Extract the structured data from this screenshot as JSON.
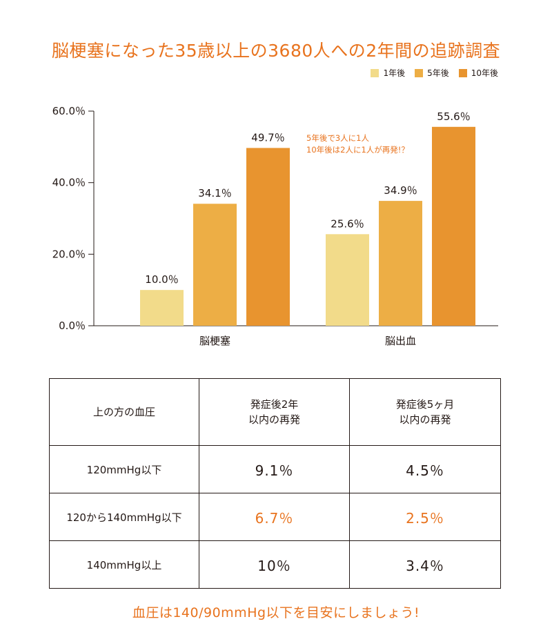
{
  "title": "脳梗塞になった35歳以上の3680人への2年間の追跡調査",
  "colors": {
    "s1": "#f2db8a",
    "s2": "#edae45",
    "s3": "#e8942f",
    "accent": "#e8731e"
  },
  "chart_data": {
    "type": "bar",
    "categories": [
      "脳梗塞",
      "脳出血"
    ],
    "series": [
      {
        "name": "1年後",
        "values": [
          10.0,
          25.6
        ],
        "labels": [
          "10.0％",
          "25.6％"
        ]
      },
      {
        "name": "5年後",
        "values": [
          34.1,
          34.9
        ],
        "labels": [
          "34.1％",
          "34.9％"
        ]
      },
      {
        "name": "10年後",
        "values": [
          49.7,
          55.6
        ],
        "labels": [
          "49.7％",
          "55.6％"
        ]
      }
    ],
    "yticks": [
      0,
      20,
      40,
      60
    ],
    "ytick_labels": [
      "0.0％",
      "20.0％",
      "40.0％",
      "60.0％"
    ],
    "ylim": [
      0,
      60
    ],
    "legend_position": "top-right",
    "annotation": [
      "5年後で3人に1人",
      "10年後は2人に1人が再発!？"
    ]
  },
  "table": {
    "headers": [
      "上の方の血圧",
      "発症後2年\n以内の再発",
      "発症後5ヶ月\n以内の再発"
    ],
    "rows": [
      {
        "label": "120mmHg以下",
        "v1": "9.1％",
        "v2": "4.5％",
        "highlight": false
      },
      {
        "label": "120から140mmHg以下",
        "v1": "6.7％",
        "v2": "2.5％",
        "highlight": true
      },
      {
        "label": "140mmHg以上",
        "v1": "10％",
        "v2": "3.4％",
        "highlight": false
      }
    ]
  },
  "footer": "血圧は140/90mmHg以下を目安にしましょう!"
}
